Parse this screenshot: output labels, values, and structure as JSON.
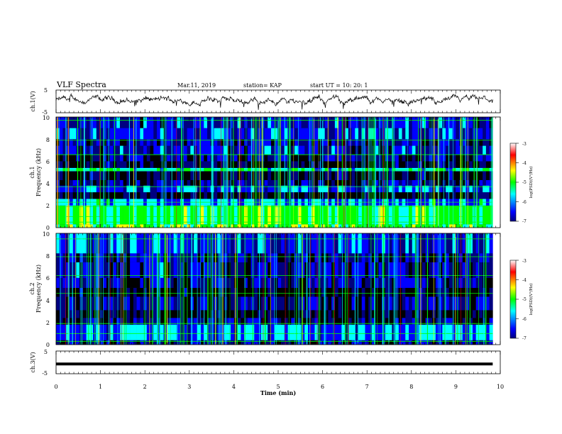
{
  "header": {
    "title": "VLF Spectra",
    "date": "Mar.11, 2019",
    "station": "station= KAP",
    "start": "start  UT =   10: 20: 1"
  },
  "chart_data": [
    {
      "type": "line",
      "name": "ch1-waveform",
      "ylabel": "ch.1(V)",
      "ylim": [
        -5,
        5
      ],
      "yticks": [
        "5",
        "-5"
      ],
      "xlim": [
        0,
        10
      ]
    },
    {
      "type": "heatmap",
      "name": "ch1-spectrogram",
      "ylabel_lines": [
        "ch.1",
        "Frequency  (kHz)"
      ],
      "ylim": [
        0,
        10
      ],
      "yticks": [
        "0",
        "2",
        "4",
        "6",
        "8",
        "10"
      ],
      "xlim": [
        0,
        10
      ],
      "colorbar": {
        "label": "log(PSD)(V²/Hz)",
        "ticks": [
          "-3",
          "-4",
          "-5",
          "-6",
          "-7"
        ],
        "range": [
          -7,
          -3
        ]
      },
      "bands_khz": [
        {
          "from": 0.0,
          "to": 0.3,
          "level": -4.6
        },
        {
          "from": 0.3,
          "to": 2.0,
          "level": -4.7
        },
        {
          "from": 2.0,
          "to": 2.6,
          "level": -5.6
        },
        {
          "from": 2.6,
          "to": 3.2,
          "level": -7.0
        },
        {
          "from": 3.2,
          "to": 3.8,
          "level": -5.9
        },
        {
          "from": 3.8,
          "to": 4.3,
          "level": -6.6
        },
        {
          "from": 4.3,
          "to": 5.1,
          "level": -6.9
        },
        {
          "from": 5.1,
          "to": 5.4,
          "level": -5.2
        },
        {
          "from": 5.4,
          "to": 6.0,
          "level": -6.8
        },
        {
          "from": 6.0,
          "to": 6.6,
          "level": -6.6
        },
        {
          "from": 6.6,
          "to": 7.4,
          "level": -6.2
        },
        {
          "from": 7.4,
          "to": 8.0,
          "level": -6.4
        },
        {
          "from": 8.0,
          "to": 9.0,
          "level": -6.0
        },
        {
          "from": 9.0,
          "to": 10.0,
          "level": -6.2
        }
      ],
      "lines_khz": [
        0.5,
        1.0,
        1.9,
        2.3,
        3.7,
        5.2,
        6.6,
        7.9,
        9.7
      ]
    },
    {
      "type": "heatmap",
      "name": "ch2-spectrogram",
      "ylabel_lines": [
        "ch.2",
        "Frequency  (kHz)"
      ],
      "ylim": [
        0,
        10
      ],
      "yticks": [
        "0",
        "2",
        "4",
        "6",
        "8",
        "10"
      ],
      "xlim": [
        0,
        10
      ],
      "colorbar": {
        "label": "log(PSD)(V²/Hz)",
        "ticks": [
          "-3",
          "-4",
          "-5",
          "-6",
          "-7"
        ],
        "range": [
          -7,
          -3
        ]
      },
      "bands_khz": [
        {
          "from": 0.0,
          "to": 0.4,
          "level": -6.5
        },
        {
          "from": 0.4,
          "to": 1.8,
          "level": -5.7
        },
        {
          "from": 1.8,
          "to": 2.4,
          "level": -6.6
        },
        {
          "from": 2.4,
          "to": 3.1,
          "level": -7.0
        },
        {
          "from": 3.1,
          "to": 4.3,
          "level": -6.4
        },
        {
          "from": 4.3,
          "to": 5.1,
          "level": -6.9
        },
        {
          "from": 5.1,
          "to": 6.0,
          "level": -6.5
        },
        {
          "from": 6.0,
          "to": 7.4,
          "level": -6.3
        },
        {
          "from": 7.4,
          "to": 8.2,
          "level": -6.4
        },
        {
          "from": 8.2,
          "to": 10.0,
          "level": -6.1
        }
      ],
      "lines_khz": [
        0.3,
        1.0,
        1.9,
        4.6,
        6.2,
        7.9,
        9.5
      ]
    },
    {
      "type": "line",
      "name": "ch3-waveform",
      "ylabel": "ch.3(V)",
      "ylim": [
        -5,
        5
      ],
      "yticks": [
        "5",
        "-5"
      ],
      "xlim": [
        0,
        10
      ],
      "level": -0.7
    }
  ],
  "xaxis": {
    "label": "Time  (min)",
    "ticks": [
      "0",
      "1",
      "2",
      "3",
      "4",
      "5",
      "6",
      "7",
      "8",
      "9",
      "10"
    ],
    "range": [
      0,
      10
    ],
    "duration_min": 9.83
  },
  "colors": {
    "black": "#000000",
    "navy": "#000080",
    "blue": "#0000ff",
    "cyan": "#00ffff",
    "green": "#00ff00",
    "yellow": "#ffff00",
    "red": "#ff0000"
  }
}
